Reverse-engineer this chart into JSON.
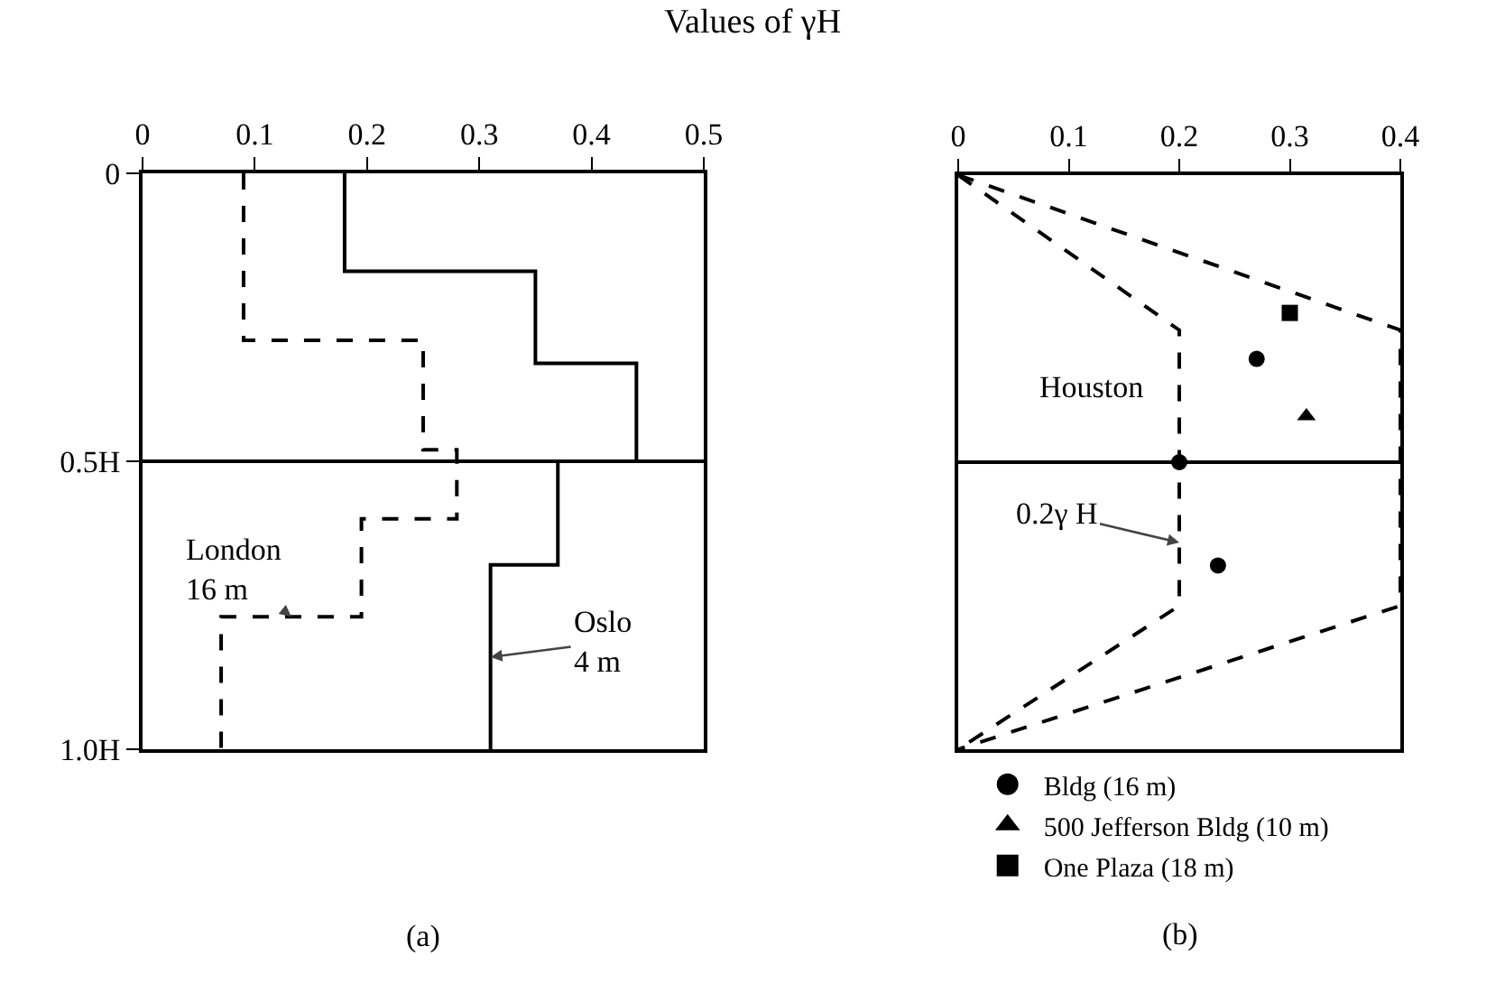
{
  "chart_data": [
    {
      "type": "line",
      "title": "Values of γH",
      "xlim": [
        0,
        0.5
      ],
      "xticks": [
        0,
        0.1,
        0.2,
        0.3,
        0.4,
        0.5
      ],
      "ylim": [
        1,
        0
      ],
      "yticks": [
        0,
        {
          "value": 0.5,
          "label": "0.5H"
        },
        {
          "value": 1,
          "label": "1.0H"
        }
      ],
      "grid": false,
      "legend": false,
      "marker": "none",
      "series": [
        {
          "name": "London\n16 m",
          "color": "#000000",
          "line_style": "dashed",
          "x": [
            0.09,
            0.09,
            0.25,
            0.25,
            0.28,
            0.28,
            0.195,
            0.195,
            0.07,
            0.07
          ],
          "values": [
            0,
            0.29,
            0.29,
            0.48,
            0.48,
            0.6,
            0.6,
            0.77,
            0.77,
            1
          ]
        },
        {
          "name": "Oslo\n4 m",
          "color": "#000000",
          "line_style": "solid",
          "x": [
            0.18,
            0.18,
            0.35,
            0.35,
            0.44,
            0.44,
            0.37,
            0.37,
            0.31,
            0.31
          ],
          "values": [
            0,
            0.17,
            0.17,
            0.33,
            0.33,
            0.5,
            0.5,
            0.68,
            0.68,
            1
          ]
        }
      ],
      "ref_lines": [
        {
          "axis": "y",
          "value": 0.5,
          "color": "#000000"
        }
      ],
      "annotations": [
        "(a)"
      ]
    },
    {
      "type": "scatter",
      "xlim": [
        0,
        0.4
      ],
      "xticks": [
        0,
        0.1,
        0.2,
        0.3,
        0.4
      ],
      "ylim": [
        1,
        0
      ],
      "tick_labels": "x",
      "grid": false,
      "legend": "bottom",
      "series": [
        {
          "type": "line",
          "color": "#000000",
          "line_style": "dashed",
          "marker": "none",
          "x": [
            0,
            0.4,
            0.4,
            0
          ],
          "values": [
            0,
            0.27,
            0.75,
            1
          ]
        },
        {
          "type": "line",
          "color": "#000000",
          "line_style": "dashed",
          "marker": "none",
          "x": [
            0,
            0.2,
            0.2,
            0
          ],
          "values": [
            0,
            0.27,
            0.75,
            1
          ]
        },
        {
          "name": "Bldg (16 m)",
          "color": "#000000",
          "marker": "circle",
          "x": [
            0.27,
            0.2,
            0.235
          ],
          "values": [
            0.32,
            0.5,
            0.68
          ]
        },
        {
          "name": "500 Jefferson Bldg (10 m)",
          "color": "#000000",
          "marker": "triangle",
          "x": [
            0.315
          ],
          "values": [
            0.42
          ]
        },
        {
          "name": "One Plaza (18 m)",
          "color": "#000000",
          "marker": "square",
          "x": [
            0.3
          ],
          "values": [
            0.24
          ]
        }
      ],
      "ref_lines": [
        {
          "axis": "y",
          "value": 0.5,
          "color": "#000000"
        }
      ],
      "annotations": [
        "Houston",
        {
          "text": "0.2γ H",
          "x": 0.2,
          "y": 0.64
        },
        "(b)"
      ]
    }
  ]
}
